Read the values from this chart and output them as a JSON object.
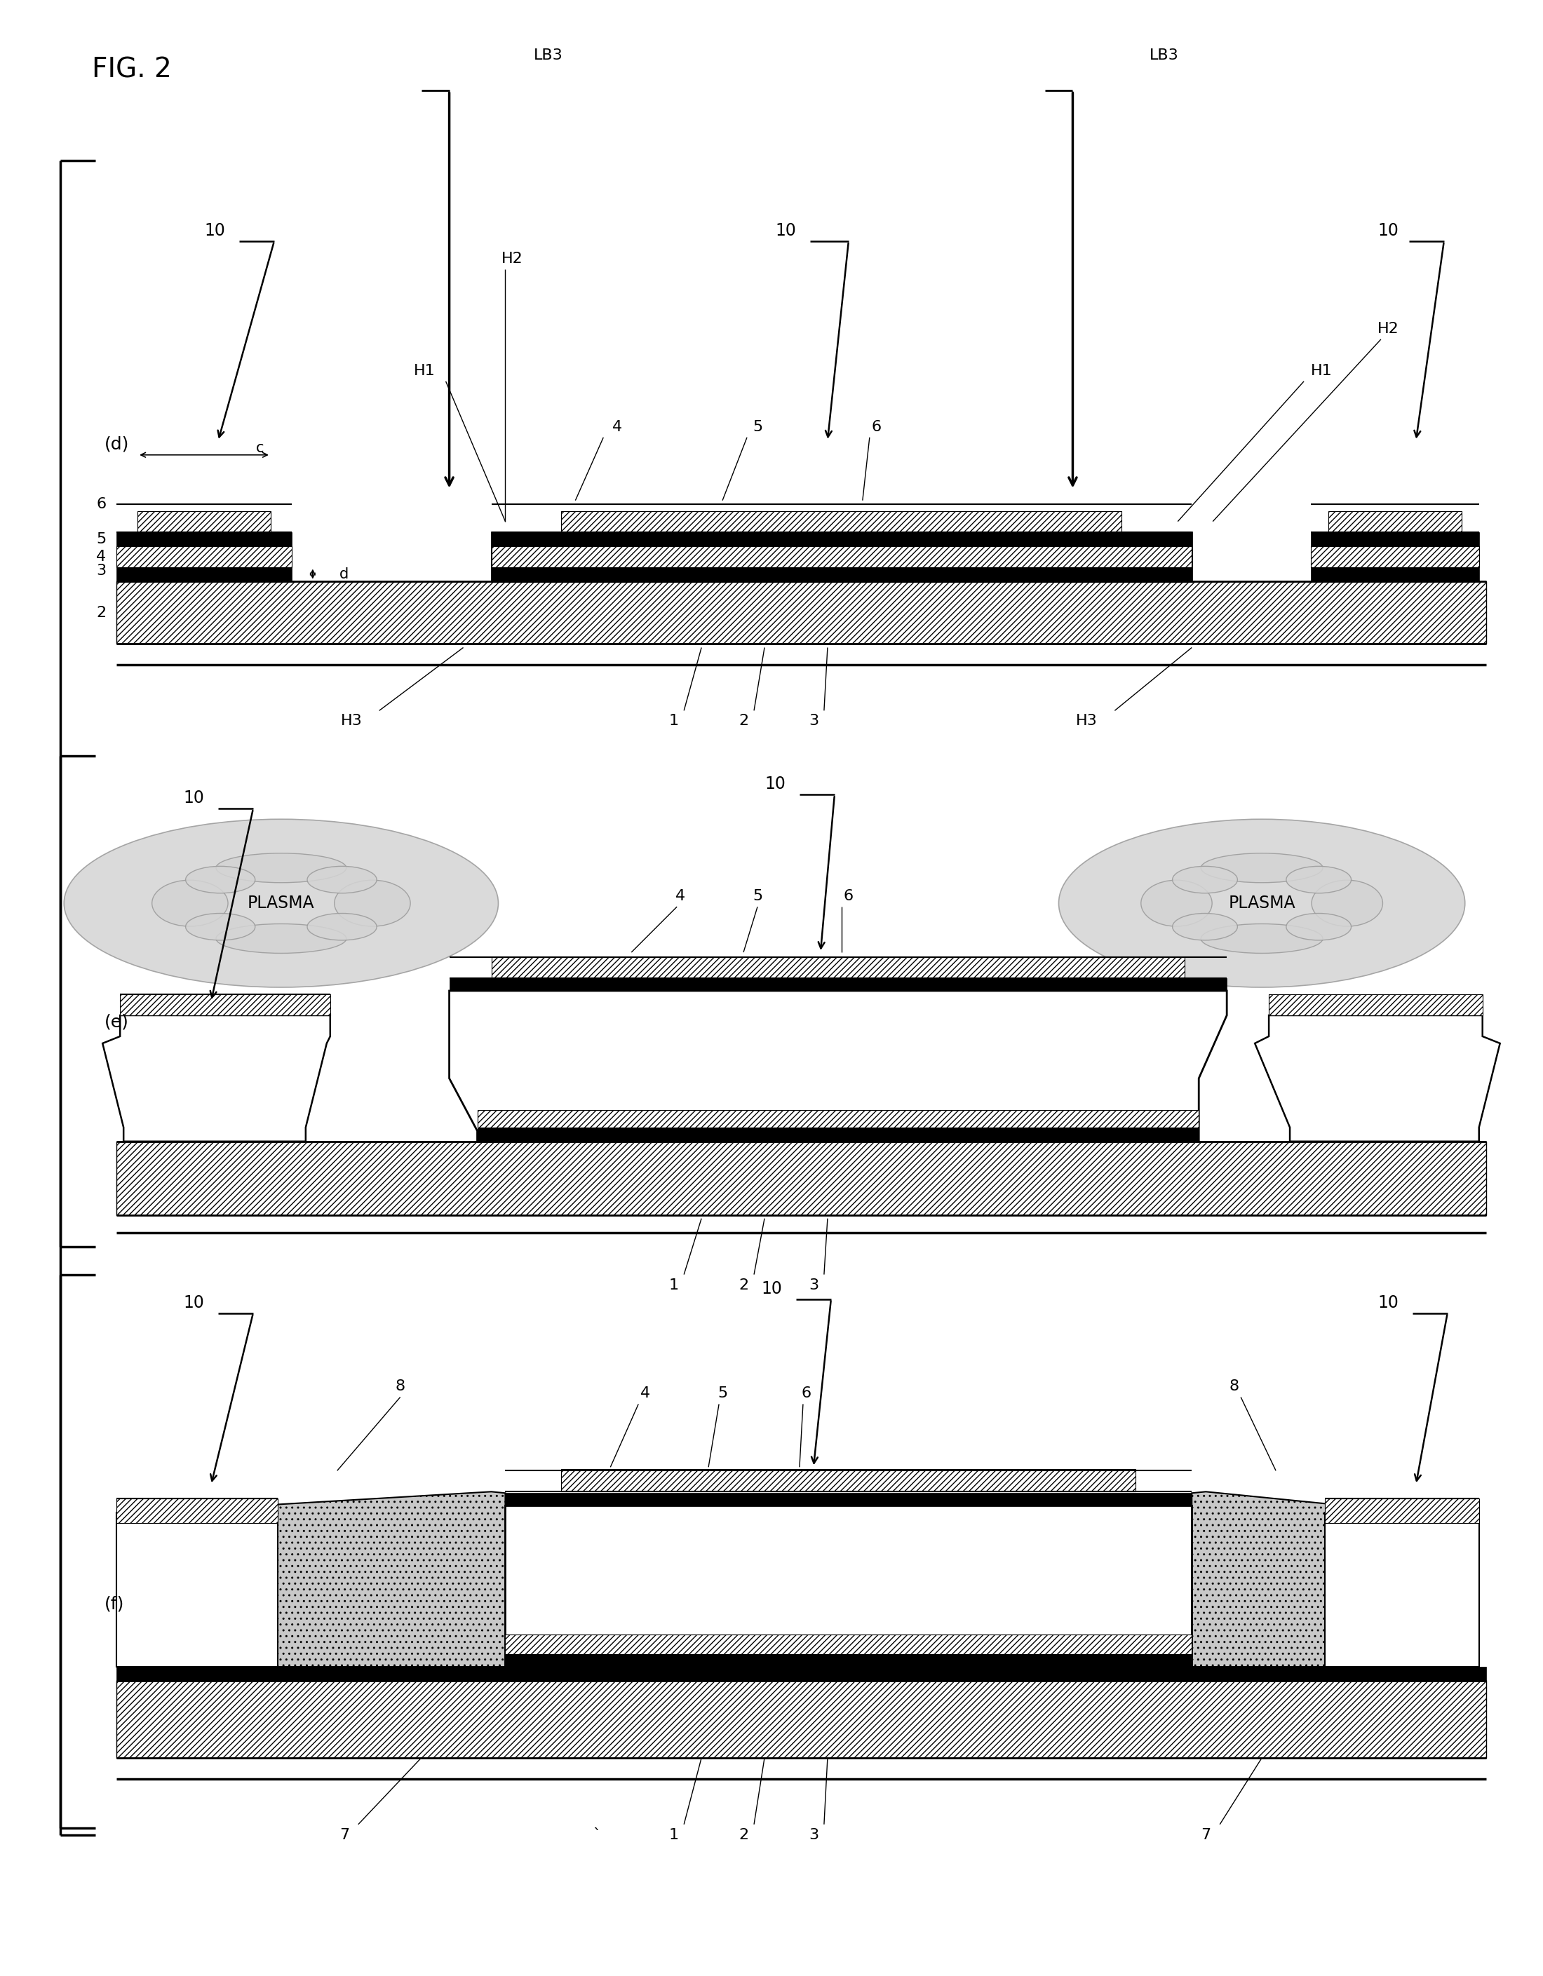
{
  "title": "FIG. 2",
  "bg_color": "#ffffff",
  "fig_width": 22.0,
  "fig_height": 28.18,
  "panels": [
    "d",
    "e",
    "f"
  ],
  "hatch_dense": "////",
  "lw_thick": 2.0,
  "lw_med": 1.5,
  "lw_thin": 1.0,
  "lw_vt": 0.8,
  "fs_title": 22,
  "fs_label": 15,
  "fs_small": 13
}
